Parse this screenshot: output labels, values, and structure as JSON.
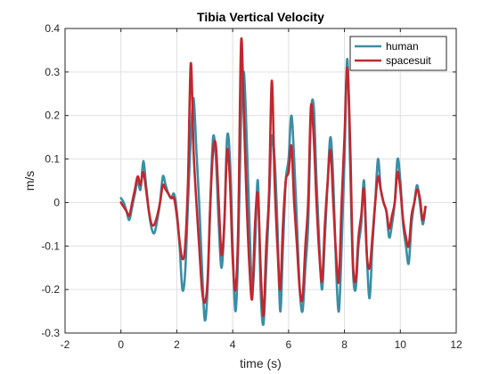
{
  "chart_data": {
    "type": "line",
    "title": "Tibia Vertical Velocity",
    "xlabel": "time (s)",
    "ylabel": "m/s",
    "xlim": [
      -2,
      12
    ],
    "ylim": [
      -0.3,
      0.4
    ],
    "xticks": [
      -2,
      0,
      2,
      4,
      6,
      8,
      10,
      12
    ],
    "yticks": [
      -0.3,
      -0.2,
      -0.1,
      0,
      0.1,
      0.2,
      0.3,
      0.4
    ],
    "xtick_labels": [
      "-2",
      "0",
      "2",
      "4",
      "6",
      "8",
      "10",
      "12"
    ],
    "ytick_labels": [
      "-0.3",
      "-0.2",
      "-0.1",
      "0",
      "0.1",
      "0.2",
      "0.3",
      "0.4"
    ],
    "grid": true,
    "legend": "top-right",
    "series": [
      {
        "name": "human",
        "color": "#3a8ea5",
        "points": [
          [
            0.0,
            0.01
          ],
          [
            0.1,
            0.0
          ],
          [
            0.2,
            -0.02
          ],
          [
            0.3,
            -0.04
          ],
          [
            0.4,
            -0.01
          ],
          [
            0.5,
            0.02
          ],
          [
            0.6,
            0.05
          ],
          [
            0.7,
            0.03
          ],
          [
            0.8,
            0.095
          ],
          [
            0.9,
            0.04
          ],
          [
            1.0,
            -0.02
          ],
          [
            1.1,
            -0.06
          ],
          [
            1.2,
            -0.07
          ],
          [
            1.3,
            -0.04
          ],
          [
            1.4,
            0.0
          ],
          [
            1.5,
            0.06
          ],
          [
            1.6,
            0.04
          ],
          [
            1.7,
            0.02
          ],
          [
            1.8,
            0.01
          ],
          [
            1.9,
            0.02
          ],
          [
            2.0,
            -0.02
          ],
          [
            2.1,
            -0.1
          ],
          [
            2.2,
            -0.2
          ],
          [
            2.3,
            -0.16
          ],
          [
            2.4,
            0.0
          ],
          [
            2.5,
            0.15
          ],
          [
            2.6,
            0.24
          ],
          [
            2.7,
            0.12
          ],
          [
            2.8,
            0.0
          ],
          [
            2.9,
            -0.15
          ],
          [
            3.0,
            -0.27
          ],
          [
            3.1,
            -0.2
          ],
          [
            3.2,
            0.0
          ],
          [
            3.3,
            0.15
          ],
          [
            3.4,
            0.1
          ],
          [
            3.5,
            -0.05
          ],
          [
            3.6,
            -0.15
          ],
          [
            3.7,
            -0.05
          ],
          [
            3.8,
            0.15
          ],
          [
            3.9,
            0.1
          ],
          [
            4.0,
            -0.1
          ],
          [
            4.1,
            -0.25
          ],
          [
            4.2,
            -0.1
          ],
          [
            4.3,
            0.2
          ],
          [
            4.4,
            0.3
          ],
          [
            4.5,
            0.15
          ],
          [
            4.6,
            -0.05
          ],
          [
            4.7,
            -0.2
          ],
          [
            4.8,
            -0.1
          ],
          [
            4.9,
            0.05
          ],
          [
            5.0,
            -0.2
          ],
          [
            5.1,
            -0.28
          ],
          [
            5.2,
            -0.15
          ],
          [
            5.3,
            0.0
          ],
          [
            5.4,
            0.15
          ],
          [
            5.5,
            0.1
          ],
          [
            5.6,
            -0.05
          ],
          [
            5.7,
            -0.25
          ],
          [
            5.8,
            -0.1
          ],
          [
            5.9,
            0.05
          ],
          [
            6.0,
            0.1
          ],
          [
            6.1,
            0.2
          ],
          [
            6.2,
            0.1
          ],
          [
            6.3,
            -0.05
          ],
          [
            6.4,
            -0.2
          ],
          [
            6.5,
            -0.25
          ],
          [
            6.6,
            -0.15
          ],
          [
            6.7,
            -0.05
          ],
          [
            6.8,
            0.2
          ],
          [
            6.9,
            0.22
          ],
          [
            7.0,
            0.05
          ],
          [
            7.1,
            -0.1
          ],
          [
            7.2,
            -0.2
          ],
          [
            7.3,
            -0.08
          ],
          [
            7.4,
            0.05
          ],
          [
            7.5,
            0.15
          ],
          [
            7.6,
            0.05
          ],
          [
            7.7,
            -0.15
          ],
          [
            7.8,
            -0.25
          ],
          [
            7.9,
            -0.1
          ],
          [
            8.0,
            0.1
          ],
          [
            8.1,
            0.33
          ],
          [
            8.2,
            0.1
          ],
          [
            8.3,
            -0.15
          ],
          [
            8.4,
            -0.2
          ],
          [
            8.5,
            -0.1
          ],
          [
            8.6,
            -0.05
          ],
          [
            8.7,
            0.05
          ],
          [
            8.8,
            -0.12
          ],
          [
            8.9,
            -0.22
          ],
          [
            9.0,
            -0.1
          ],
          [
            9.1,
            0.0
          ],
          [
            9.2,
            0.1
          ],
          [
            9.3,
            0.03
          ],
          [
            9.4,
            0.0
          ],
          [
            9.5,
            -0.02
          ],
          [
            9.6,
            -0.08
          ],
          [
            9.7,
            -0.05
          ],
          [
            9.8,
            0.0
          ],
          [
            9.9,
            0.1
          ],
          [
            10.0,
            0.05
          ],
          [
            10.1,
            -0.05
          ],
          [
            10.2,
            -0.1
          ],
          [
            10.3,
            -0.14
          ],
          [
            10.4,
            -0.05
          ],
          [
            10.5,
            0.0
          ],
          [
            10.6,
            0.04
          ],
          [
            10.7,
            0.0
          ],
          [
            10.8,
            -0.05
          ],
          [
            10.9,
            -0.01
          ]
        ]
      },
      {
        "name": "spacesuit",
        "color": "#c0282f",
        "points": [
          [
            0.0,
            0.0
          ],
          [
            0.1,
            -0.01
          ],
          [
            0.2,
            -0.02
          ],
          [
            0.3,
            -0.03
          ],
          [
            0.4,
            0.0
          ],
          [
            0.5,
            0.03
          ],
          [
            0.6,
            0.06
          ],
          [
            0.7,
            0.04
          ],
          [
            0.8,
            0.07
          ],
          [
            0.9,
            0.03
          ],
          [
            1.0,
            -0.02
          ],
          [
            1.1,
            -0.05
          ],
          [
            1.2,
            -0.05
          ],
          [
            1.3,
            -0.03
          ],
          [
            1.4,
            0.0
          ],
          [
            1.5,
            0.04
          ],
          [
            1.6,
            0.03
          ],
          [
            1.7,
            0.02
          ],
          [
            1.8,
            0.01
          ],
          [
            1.9,
            0.01
          ],
          [
            2.0,
            -0.03
          ],
          [
            2.1,
            -0.09
          ],
          [
            2.2,
            -0.13
          ],
          [
            2.3,
            -0.1
          ],
          [
            2.4,
            0.05
          ],
          [
            2.5,
            0.32
          ],
          [
            2.6,
            0.12
          ],
          [
            2.7,
            0.0
          ],
          [
            2.8,
            -0.1
          ],
          [
            2.9,
            -0.2
          ],
          [
            3.0,
            -0.23
          ],
          [
            3.1,
            -0.18
          ],
          [
            3.2,
            0.0
          ],
          [
            3.3,
            0.12
          ],
          [
            3.4,
            0.13
          ],
          [
            3.5,
            0.0
          ],
          [
            3.6,
            -0.12
          ],
          [
            3.7,
            -0.05
          ],
          [
            3.8,
            0.12
          ],
          [
            3.9,
            0.05
          ],
          [
            4.0,
            -0.13
          ],
          [
            4.1,
            -0.2
          ],
          [
            4.2,
            -0.05
          ],
          [
            4.3,
            0.37
          ],
          [
            4.4,
            0.2
          ],
          [
            4.5,
            0.0
          ],
          [
            4.6,
            -0.15
          ],
          [
            4.7,
            -0.22
          ],
          [
            4.8,
            -0.05
          ],
          [
            4.9,
            0.02
          ],
          [
            5.0,
            -0.15
          ],
          [
            5.1,
            -0.26
          ],
          [
            5.2,
            -0.1
          ],
          [
            5.3,
            0.02
          ],
          [
            5.4,
            0.28
          ],
          [
            5.5,
            0.05
          ],
          [
            5.6,
            -0.1
          ],
          [
            5.7,
            -0.2
          ],
          [
            5.8,
            -0.05
          ],
          [
            5.9,
            0.05
          ],
          [
            6.0,
            0.07
          ],
          [
            6.1,
            0.13
          ],
          [
            6.2,
            0.0
          ],
          [
            6.3,
            -0.1
          ],
          [
            6.4,
            -0.2
          ],
          [
            6.5,
            -0.22
          ],
          [
            6.6,
            -0.1
          ],
          [
            6.7,
            0.0
          ],
          [
            6.8,
            0.22
          ],
          [
            6.9,
            0.15
          ],
          [
            7.0,
            0.0
          ],
          [
            7.1,
            -0.12
          ],
          [
            7.2,
            -0.18
          ],
          [
            7.3,
            -0.05
          ],
          [
            7.4,
            0.05
          ],
          [
            7.5,
            0.12
          ],
          [
            7.6,
            0.0
          ],
          [
            7.7,
            -0.12
          ],
          [
            7.8,
            -0.18
          ],
          [
            7.9,
            0.0
          ],
          [
            8.0,
            0.15
          ],
          [
            8.1,
            0.31
          ],
          [
            8.2,
            0.15
          ],
          [
            8.3,
            -0.13
          ],
          [
            8.4,
            -0.18
          ],
          [
            8.5,
            -0.08
          ],
          [
            8.6,
            -0.03
          ],
          [
            8.7,
            0.03
          ],
          [
            8.8,
            -0.12
          ],
          [
            8.9,
            -0.15
          ],
          [
            9.0,
            -0.08
          ],
          [
            9.1,
            0.0
          ],
          [
            9.2,
            0.06
          ],
          [
            9.3,
            0.03
          ],
          [
            9.4,
            0.0
          ],
          [
            9.5,
            -0.02
          ],
          [
            9.6,
            -0.06
          ],
          [
            9.7,
            -0.03
          ],
          [
            9.8,
            0.0
          ],
          [
            9.9,
            0.07
          ],
          [
            10.0,
            0.03
          ],
          [
            10.1,
            -0.04
          ],
          [
            10.2,
            -0.08
          ],
          [
            10.3,
            -0.1
          ],
          [
            10.4,
            -0.03
          ],
          [
            10.5,
            0.0
          ],
          [
            10.6,
            0.03
          ],
          [
            10.7,
            0.01
          ],
          [
            10.8,
            -0.04
          ],
          [
            10.9,
            -0.01
          ]
        ]
      }
    ]
  }
}
